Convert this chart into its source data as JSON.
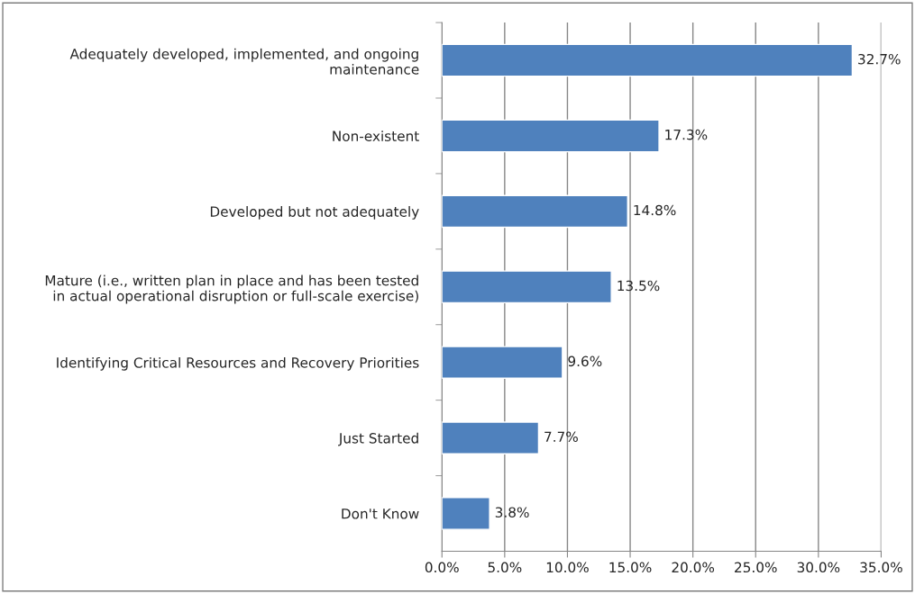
{
  "chart_data": {
    "type": "bar",
    "orientation": "horizontal",
    "categories": [
      "Adequately developed, implemented, and ongoing\nmaintenance",
      "Non-existent",
      "Developed but not adequately",
      "Mature (i.e., written plan in place and has been tested\nin actual operational disruption or full-scale exercise)",
      "Identifying Critical Resources and Recovery Priorities",
      "Just Started",
      "Don't Know"
    ],
    "values": [
      32.7,
      17.3,
      14.8,
      13.5,
      9.6,
      7.7,
      3.8
    ],
    "value_labels": [
      "32.7%",
      "17.3%",
      "14.8%",
      "13.5%",
      "9.6%",
      "7.7%",
      "3.8%"
    ],
    "color": "#4f81bd",
    "xlim": [
      0,
      35
    ],
    "xticks": [
      {
        "value": 0,
        "label": "0.0%"
      },
      {
        "value": 5,
        "label": "5.0%"
      },
      {
        "value": 10,
        "label": "10.0%"
      },
      {
        "value": 15,
        "label": "15.0%"
      },
      {
        "value": 20,
        "label": "20.0%"
      },
      {
        "value": 25,
        "label": "25.0%"
      },
      {
        "value": 30,
        "label": "30.0%"
      },
      {
        "value": 35,
        "label": "35.0%"
      }
    ],
    "grid": "x"
  }
}
